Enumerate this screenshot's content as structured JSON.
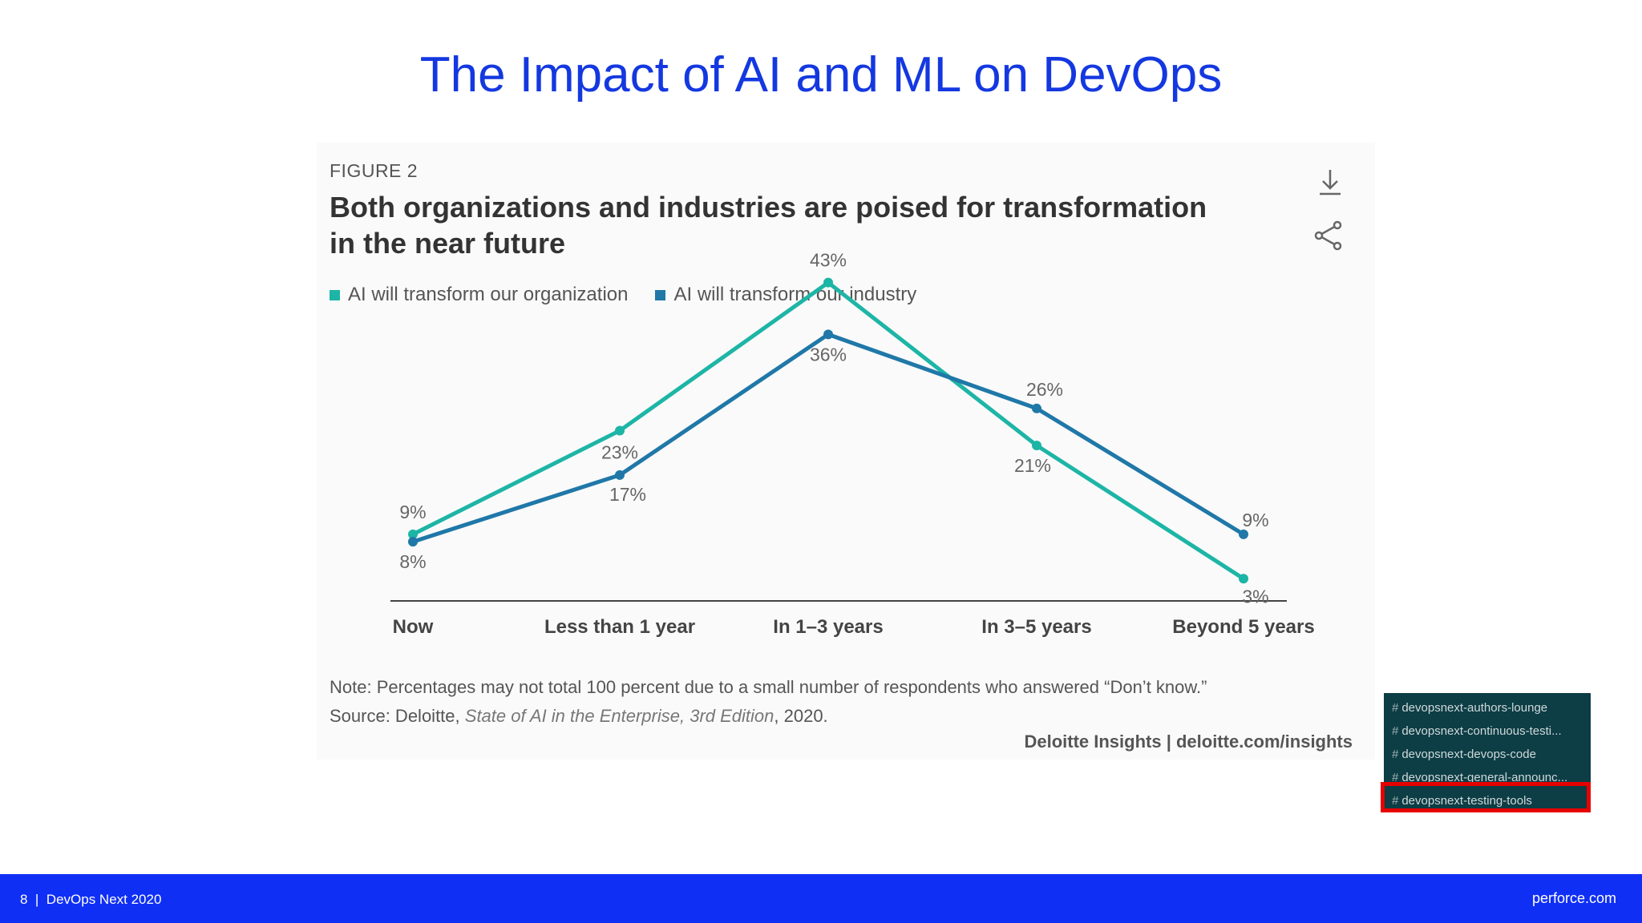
{
  "slide": {
    "title": "The Impact of AI and ML on DevOps",
    "footer_page": "8",
    "footer_sep": "|",
    "footer_event": "DevOps Next 2020",
    "footer_site": "perforce.com"
  },
  "figure": {
    "label": "FIGURE 2",
    "heading": "Both organizations and industries are poised for transformation in the near future",
    "note": "Note: Percentages may not total 100 percent due to a small number of respondents who answered “Don’t know.”",
    "source_prefix": "Source: Deloitte,",
    "source_title": "State of AI in the Enterprise, 3rd Edition",
    "source_suffix": ", 2020.",
    "credit": "Deloitte Insights | deloitte.com/insights",
    "icons": [
      "download-icon",
      "share-icon"
    ]
  },
  "chart_data": {
    "type": "line",
    "title": "Both organizations and industries are poised for transformation in the near future",
    "categories": [
      "Now",
      "Less than 1 year",
      "In 1–3 years",
      "In 3–5 years",
      "Beyond 5 years"
    ],
    "series": [
      {
        "name": "AI will transform our organization",
        "color": "#1db5a6",
        "values": [
          9,
          23,
          43,
          21,
          3
        ],
        "labels": [
          "9%",
          "23%",
          "43%",
          "21%",
          "3%"
        ]
      },
      {
        "name": "AI will transform our industry",
        "color": "#1f78a8",
        "values": [
          8,
          17,
          36,
          26,
          9
        ],
        "labels": [
          "8%",
          "17%",
          "36%",
          "26%",
          "9%"
        ]
      }
    ],
    "ylim": [
      0,
      50
    ],
    "grid": false,
    "legend_position": "top-left"
  },
  "channels": {
    "items": [
      "devopsnext-authors-lounge",
      "devopsnext-continuous-testi...",
      "devopsnext-devops-code",
      "devopsnext-general-announc...",
      "devopsnext-testing-tools"
    ],
    "highlighted_index": 4,
    "highlight_color": "#e60000"
  }
}
